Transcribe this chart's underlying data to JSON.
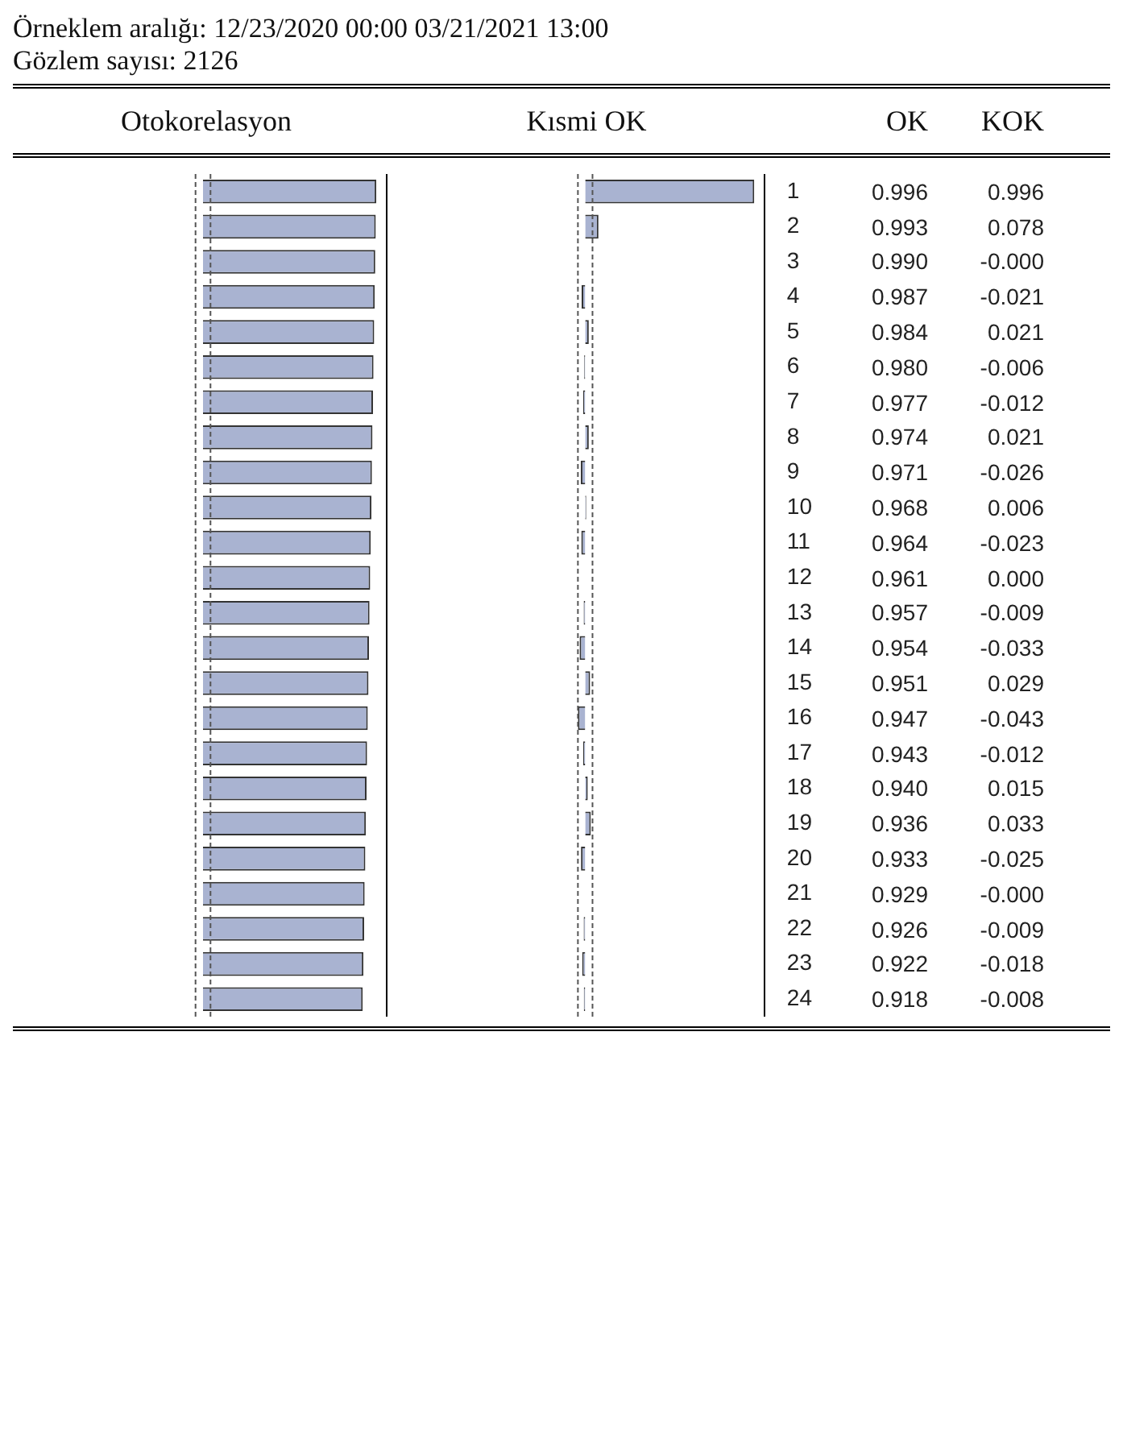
{
  "chart_data": [
    {
      "type": "bar",
      "orientation": "horizontal",
      "title": "Örneklem aralığı: 12/23/2020 00:00 03/21/2021 13:00",
      "subtitle": "Gözlem sayısı: 2126",
      "annotations": [
        "OK"
      ],
      "categories": [
        "1",
        "2",
        "3",
        "4",
        "5",
        "6",
        "7",
        "8",
        "9",
        "10",
        "11",
        "12",
        "13",
        "14",
        "15",
        "16",
        "17",
        "18",
        "19",
        "20",
        "21",
        "22",
        "23",
        "24"
      ],
      "tick_labels": false,
      "ref_lines": [
        {
          "axis": "x",
          "value": -0.043,
          "line_style": "dashed",
          "color": "#555555"
        },
        {
          "axis": "x",
          "value": 0.043,
          "line_style": "dashed",
          "color": "#555555"
        }
      ],
      "series": [
        {
          "name": "Otokorelasyon",
          "color": "#a9b3d1",
          "values": [
            0.996,
            0.993,
            0.99,
            0.987,
            0.984,
            0.98,
            0.977,
            0.974,
            0.971,
            0.968,
            0.964,
            0.961,
            0.957,
            0.954,
            0.951,
            0.947,
            0.943,
            0.94,
            0.936,
            0.933,
            0.929,
            0.926,
            0.922,
            0.918
          ],
          "value_labels": [
            "0.996",
            "0.993",
            "0.990",
            "0.987",
            "0.984",
            "0.980",
            "0.977",
            "0.974",
            "0.971",
            "0.968",
            "0.964",
            "0.961",
            "0.957",
            "0.954",
            "0.951",
            "0.947",
            "0.943",
            "0.940",
            "0.936",
            "0.933",
            "0.929",
            "0.926",
            "0.922",
            "0.918"
          ]
        }
      ]
    },
    {
      "type": "bar",
      "orientation": "horizontal",
      "annotations": [
        "KOK"
      ],
      "categories": [
        "1",
        "2",
        "3",
        "4",
        "5",
        "6",
        "7",
        "8",
        "9",
        "10",
        "11",
        "12",
        "13",
        "14",
        "15",
        "16",
        "17",
        "18",
        "19",
        "20",
        "21",
        "22",
        "23",
        "24"
      ],
      "tick_labels": "y",
      "ref_lines": [
        {
          "axis": "x",
          "value": -0.043,
          "line_style": "dashed",
          "color": "#555555"
        },
        {
          "axis": "x",
          "value": 0.043,
          "line_style": "dashed",
          "color": "#555555"
        }
      ],
      "series": [
        {
          "name": "Kısmi OK",
          "color": "#a9b3d1",
          "values": [
            0.996,
            0.078,
            0,
            -0.021,
            0.021,
            -0.006,
            -0.012,
            0.021,
            -0.026,
            0.006,
            -0.023,
            0.0,
            -0.009,
            -0.033,
            0.029,
            -0.043,
            -0.012,
            0.015,
            0.033,
            -0.025,
            0,
            -0.009,
            -0.018,
            -0.008
          ],
          "value_labels": [
            "0.996",
            "0.078",
            "-0.000",
            "-0.021",
            "0.021",
            "-0.006",
            "-0.012",
            "0.021",
            "-0.026",
            "0.006",
            "-0.023",
            "0.000",
            "-0.009",
            "-0.033",
            "0.029",
            "-0.043",
            "-0.012",
            "0.015",
            "0.033",
            "-0.025",
            "-0.000",
            "-0.009",
            "-0.018",
            "-0.008"
          ]
        }
      ]
    }
  ]
}
